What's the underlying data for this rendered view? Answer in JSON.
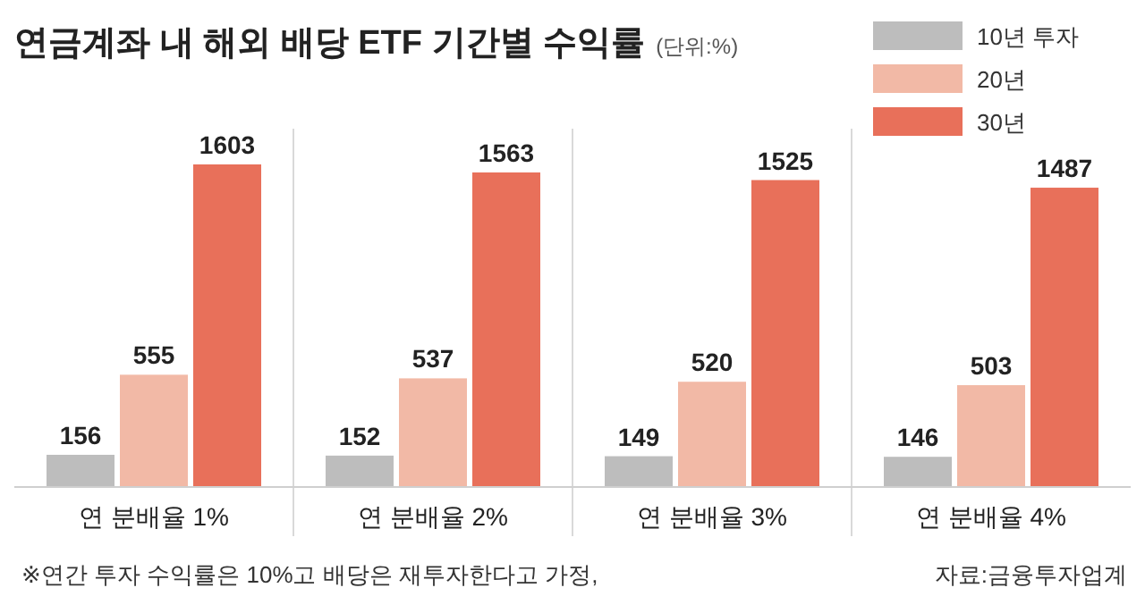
{
  "chart_data": {
    "type": "bar",
    "title": "연금계좌 내 해외 배당 ETF 기간별 수익률",
    "subtitle": "(단위:%)",
    "categories": [
      "연 분배율 1%",
      "연 분배율 2%",
      "연 분배율 3%",
      "연 분배율 4%"
    ],
    "series": [
      {
        "name": "10년 투자",
        "color": "#bdbdbd",
        "values": [
          156,
          152,
          149,
          146
        ]
      },
      {
        "name": "20년",
        "color": "#f2b9a6",
        "values": [
          555,
          537,
          520,
          503
        ]
      },
      {
        "name": "30년",
        "color": "#e8705a",
        "values": [
          1603,
          1563,
          1525,
          1487
        ]
      }
    ],
    "data_labels": true,
    "legend": "top right",
    "annotations": [
      "※연간 투자 수익률은 10%고 배당은 재투자한다고 가정,",
      "자료:금융투자업계"
    ]
  }
}
